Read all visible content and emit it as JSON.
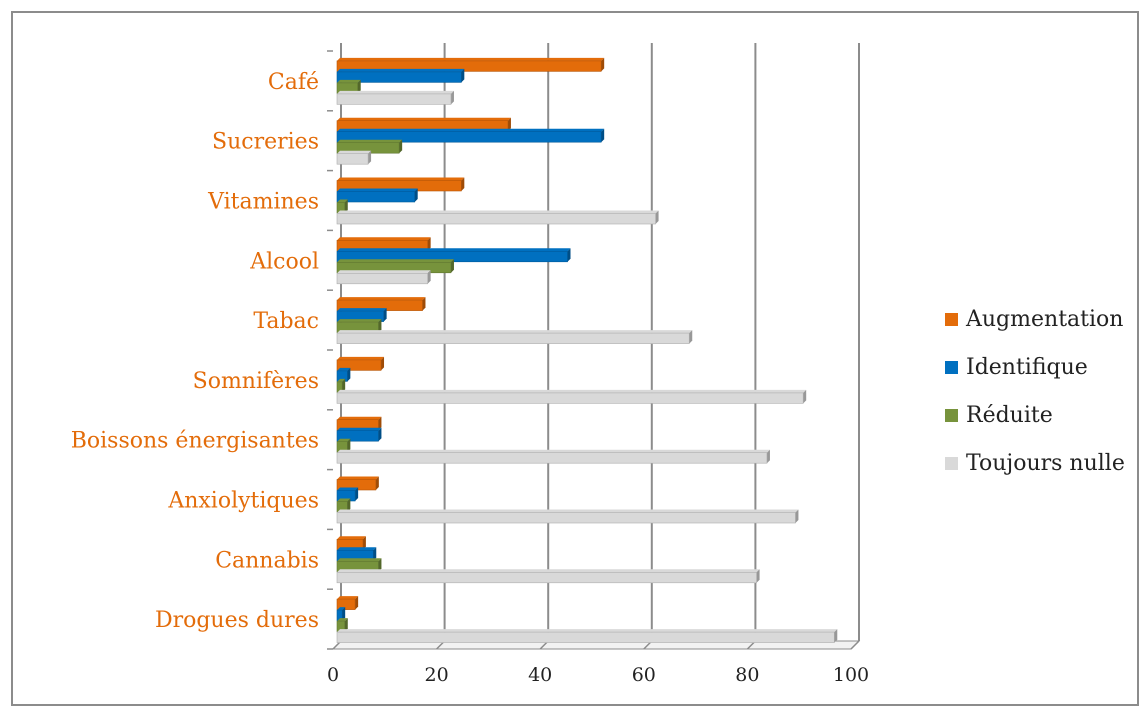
{
  "chart_data": {
    "type": "bar",
    "orientation": "horizontal",
    "categories": [
      "Café",
      "Sucreries",
      "Vitamines",
      "Alcool",
      "Tabac",
      "Somnifères",
      "Boissons énergisantes",
      "Anxiolytiques",
      "Cannabis",
      "Drogues dures"
    ],
    "series": [
      {
        "name": "Augmentation",
        "color": "#e36c0a",
        "values": [
          51,
          33,
          24,
          17.5,
          16.5,
          8.5,
          8,
          7.5,
          5,
          3.5
        ]
      },
      {
        "name": "Identifique",
        "color": "#0070c0",
        "values": [
          24,
          51,
          15,
          44.5,
          9,
          2,
          8,
          3.5,
          7,
          1
        ]
      },
      {
        "name": "Réduite",
        "color": "#77933c",
        "values": [
          4,
          12,
          1.5,
          22,
          8,
          1,
          2,
          2,
          8,
          1.5
        ]
      },
      {
        "name": "Toujours nulle",
        "color": "#d9d9d9",
        "values": [
          22,
          6,
          61.5,
          17.5,
          68,
          90,
          83,
          88.5,
          81,
          96
        ]
      }
    ],
    "xlim": [
      0,
      100
    ],
    "xticks": [
      "0",
      "20",
      "40",
      "60",
      "80",
      "100"
    ],
    "grid": true,
    "legend_position": "right",
    "category_label_color": "#e36c0a"
  }
}
